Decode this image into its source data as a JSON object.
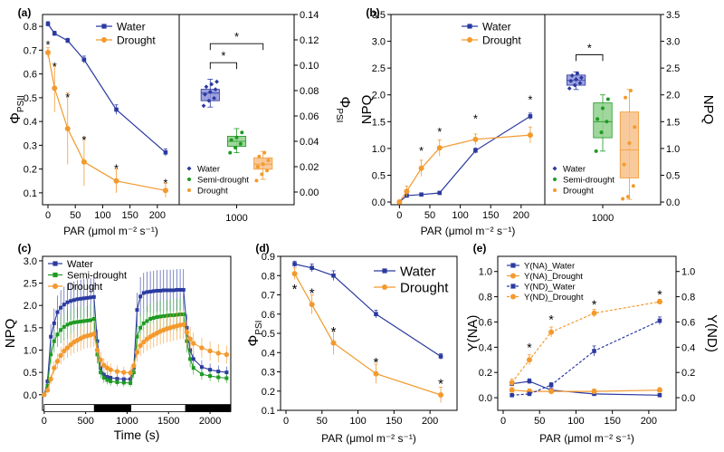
{
  "colors": {
    "water": "#2b3aa0",
    "drought": "#f39a2e",
    "semi": "#1e9a23",
    "box_water": "#8c90d8",
    "box_semi": "#8fd08c",
    "box_drought": "#f7c08a",
    "dark": "#000000"
  },
  "chart_data": [
    {
      "id": "a",
      "label": "(a)",
      "type": "line",
      "xlabel": "PAR (μmol m⁻² s⁻¹)",
      "ylabel": "ΦPSII",
      "xlim": [
        0,
        230
      ],
      "ylim": [
        0.05,
        0.85
      ],
      "xticks": [
        0,
        50,
        100,
        150,
        200
      ],
      "yticks": [
        0.1,
        0.2,
        0.3,
        0.4,
        0.5,
        0.6,
        0.7,
        0.8
      ],
      "series": [
        {
          "name": "Water",
          "color_key": "water",
          "marker": "square",
          "x": [
            0,
            12,
            36,
            66,
            125,
            215
          ],
          "y": [
            0.81,
            0.77,
            0.74,
            0.66,
            0.45,
            0.27
          ],
          "err": [
            0.01,
            0.01,
            0.01,
            0.015,
            0.02,
            0.015
          ]
        },
        {
          "name": "Drought",
          "color_key": "drought",
          "marker": "circle",
          "x": [
            0,
            12,
            36,
            66,
            125,
            215
          ],
          "y": [
            0.69,
            0.54,
            0.37,
            0.23,
            0.15,
            0.11
          ],
          "err": [
            0.02,
            0.1,
            0.15,
            0.1,
            0.05,
            0.03
          ]
        }
      ],
      "stars": [
        {
          "x": 0,
          "y": 0.72,
          "text": "*"
        },
        {
          "x": 12,
          "y": 0.63,
          "text": "*"
        },
        {
          "x": 36,
          "y": 0.5,
          "text": "*"
        },
        {
          "x": 66,
          "y": 0.32,
          "text": "*"
        },
        {
          "x": 125,
          "y": 0.2,
          "text": "*"
        },
        {
          "x": 215,
          "y": 0.14,
          "text": "*"
        }
      ],
      "legend": [
        "Water",
        "Drought"
      ],
      "box": {
        "ylabel": "ΦPSI",
        "ylim": [
          -0.01,
          0.14
        ],
        "yticks": [
          "0.00",
          "0.02",
          "0.04",
          "0.06",
          "0.08",
          "0.10",
          "0.12",
          "0.14"
        ],
        "xtick": "1000",
        "groups": [
          {
            "name": "Water",
            "color_key": "box_water",
            "mk_key": "water",
            "q1": 0.072,
            "median": 0.078,
            "q3": 0.081,
            "min": 0.067,
            "max": 0.089,
            "points": [
              0.068,
              0.072,
              0.074,
              0.077,
              0.079,
              0.081,
              0.083,
              0.085,
              0.087
            ]
          },
          {
            "name": "Semi-drought",
            "color_key": "box_semi",
            "mk_key": "semi",
            "q1": 0.036,
            "median": 0.04,
            "q3": 0.044,
            "min": 0.031,
            "max": 0.05,
            "points": [
              0.031,
              0.035,
              0.038,
              0.041,
              0.043,
              0.047
            ]
          },
          {
            "name": "Drought",
            "color_key": "box_drought",
            "mk_key": "drought",
            "q1": 0.018,
            "median": 0.022,
            "q3": 0.027,
            "min": 0.01,
            "max": 0.032,
            "points": [
              0.009,
              0.014,
              0.017,
              0.02,
              0.022,
              0.025,
              0.028,
              0.031
            ]
          }
        ],
        "legend": [
          "Water",
          "Semi-drought",
          "Drought"
        ],
        "sig": [
          {
            "from": 0,
            "to": 1,
            "y": 0.102,
            "text": "*"
          },
          {
            "from": 0,
            "to": 2,
            "y": 0.117,
            "text": "*"
          }
        ]
      }
    },
    {
      "id": "b",
      "label": "(b)",
      "type": "line",
      "xlabel": "PAR (μmol m⁻² s⁻¹)",
      "ylabel": "NPQ",
      "xlim": [
        -5,
        230
      ],
      "ylim": [
        -0.05,
        3.5
      ],
      "xticks": [
        0,
        50,
        100,
        150,
        200
      ],
      "yticks": [
        "0.0",
        "0.5",
        "1.0",
        "1.5",
        "2.0",
        "2.5",
        "3.0",
        "3.5"
      ],
      "series": [
        {
          "name": "Water",
          "color_key": "water",
          "marker": "square",
          "x": [
            0,
            12,
            36,
            66,
            125,
            215
          ],
          "y": [
            0.0,
            0.12,
            0.14,
            0.17,
            0.96,
            1.6
          ],
          "err": [
            0.01,
            0.02,
            0.02,
            0.03,
            0.05,
            0.06
          ]
        },
        {
          "name": "Drought",
          "color_key": "drought",
          "marker": "circle",
          "x": [
            0,
            12,
            36,
            66,
            125,
            215
          ],
          "y": [
            0.0,
            0.2,
            0.63,
            1.01,
            1.17,
            1.25
          ],
          "err": [
            0.01,
            0.1,
            0.15,
            0.15,
            0.1,
            0.15
          ]
        }
      ],
      "stars": [
        {
          "x": 36,
          "y": 0.95,
          "text": "*"
        },
        {
          "x": 66,
          "y": 1.3,
          "text": "*"
        },
        {
          "x": 125,
          "y": 1.55,
          "text": "*"
        },
        {
          "x": 215,
          "y": 1.9,
          "text": "*"
        }
      ],
      "legend": [
        "Water",
        "Drought"
      ],
      "box": {
        "ylabel": "NPQ",
        "ylim": [
          -0.05,
          3.5
        ],
        "yticks": [
          "0.0",
          "0.5",
          "1.0",
          "1.5",
          "2.0",
          "2.5",
          "3.0",
          "3.5"
        ],
        "xtick": "1000",
        "groups": [
          {
            "name": "Water",
            "color_key": "box_water",
            "mk_key": "water",
            "q1": 2.18,
            "median": 2.27,
            "q3": 2.37,
            "min": 2.1,
            "max": 2.43,
            "points": [
              2.12,
              2.18,
              2.22,
              2.26,
              2.29,
              2.32,
              2.36,
              2.4
            ]
          },
          {
            "name": "Semi-drought",
            "color_key": "box_semi",
            "mk_key": "semi",
            "q1": 1.2,
            "median": 1.5,
            "q3": 1.85,
            "min": 0.95,
            "max": 2.0,
            "points": [
              0.95,
              1.3,
              1.5,
              1.55,
              1.75,
              1.92
            ]
          },
          {
            "name": "Drought",
            "color_key": "box_drought",
            "mk_key": "drought",
            "q1": 0.45,
            "median": 0.97,
            "q3": 1.68,
            "min": 0.05,
            "max": 2.1,
            "points": [
              0.06,
              0.1,
              0.3,
              0.7,
              1.1,
              1.4,
              1.95,
              2.08
            ]
          }
        ],
        "legend": [
          "Water",
          "Semi-drought",
          "Drought"
        ],
        "sig": [
          {
            "from": 0,
            "to": 1,
            "y": 2.75,
            "text": "*"
          }
        ]
      }
    },
    {
      "id": "c",
      "label": "(c)",
      "type": "line",
      "xlabel": "Time (s)",
      "ylabel": "NPQ",
      "xlim": [
        -20,
        2250
      ],
      "ylim": [
        -0.35,
        3.1
      ],
      "xticks": [
        0,
        500,
        1000,
        1500,
        2000
      ],
      "yticks": [
        "0.0",
        "0.5",
        "1.0",
        "1.5",
        "2.0",
        "2.5",
        "3.0"
      ],
      "dark_periods": [
        [
          600,
          1050
        ],
        [
          1700,
          2250
        ]
      ],
      "series": [
        {
          "name": "Water",
          "color_key": "water",
          "marker": "square",
          "t": [
            0,
            40,
            80,
            120,
            160,
            200,
            240,
            280,
            320,
            360,
            400,
            440,
            480,
            520,
            560,
            600,
            640,
            680,
            720,
            760,
            800,
            880,
            960,
            1040,
            1080,
            1120,
            1160,
            1200,
            1240,
            1280,
            1320,
            1360,
            1400,
            1440,
            1480,
            1520,
            1560,
            1600,
            1640,
            1680,
            1720,
            1760,
            1800,
            1900,
            2000,
            2100,
            2200
          ],
          "y": [
            0.0,
            0.3,
            1.3,
            1.6,
            1.85,
            1.95,
            2.02,
            2.07,
            2.1,
            2.12,
            2.14,
            2.15,
            2.16,
            2.17,
            2.18,
            2.19,
            1.2,
            0.6,
            0.45,
            0.4,
            0.38,
            0.36,
            0.35,
            0.35,
            0.6,
            1.9,
            2.2,
            2.28,
            2.3,
            2.31,
            2.32,
            2.33,
            2.33,
            2.34,
            2.34,
            2.34,
            2.34,
            2.35,
            2.35,
            2.35,
            1.5,
            1.0,
            0.8,
            0.62,
            0.56,
            0.52,
            0.5
          ]
        },
        {
          "name": "Semi-drought",
          "color_key": "semi",
          "marker": "square",
          "t": [
            0,
            40,
            80,
            120,
            160,
            200,
            240,
            280,
            320,
            360,
            400,
            440,
            480,
            520,
            560,
            600,
            640,
            680,
            720,
            760,
            800,
            880,
            960,
            1040,
            1080,
            1120,
            1160,
            1200,
            1240,
            1280,
            1320,
            1360,
            1400,
            1440,
            1480,
            1520,
            1560,
            1600,
            1640,
            1680,
            1720,
            1760,
            1800,
            1900,
            2000,
            2100,
            2200
          ],
          "y": [
            0.0,
            0.2,
            0.9,
            1.2,
            1.35,
            1.45,
            1.52,
            1.57,
            1.6,
            1.62,
            1.63,
            1.64,
            1.65,
            1.66,
            1.67,
            1.7,
            0.9,
            0.5,
            0.38,
            0.33,
            0.3,
            0.28,
            0.27,
            0.26,
            0.5,
            1.3,
            1.5,
            1.6,
            1.65,
            1.7,
            1.72,
            1.74,
            1.75,
            1.76,
            1.77,
            1.78,
            1.78,
            1.79,
            1.8,
            1.8,
            1.2,
            0.8,
            0.6,
            0.46,
            0.42,
            0.39,
            0.37
          ]
        },
        {
          "name": "Drought",
          "color_key": "drought",
          "marker": "circle",
          "t": [
            0,
            40,
            80,
            120,
            160,
            200,
            240,
            280,
            320,
            360,
            400,
            440,
            480,
            520,
            560,
            600,
            640,
            680,
            720,
            760,
            800,
            880,
            960,
            1040,
            1080,
            1120,
            1160,
            1200,
            1240,
            1280,
            1320,
            1360,
            1400,
            1440,
            1480,
            1520,
            1560,
            1600,
            1640,
            1680,
            1720,
            1760,
            1800,
            1900,
            2000,
            2100,
            2200
          ],
          "y": [
            0.0,
            0.1,
            0.35,
            0.6,
            0.75,
            0.88,
            0.98,
            1.05,
            1.12,
            1.18,
            1.22,
            1.26,
            1.3,
            1.32,
            1.34,
            1.36,
            1.0,
            0.78,
            0.66,
            0.6,
            0.56,
            0.52,
            0.5,
            0.49,
            0.65,
            0.95,
            1.1,
            1.18,
            1.25,
            1.3,
            1.34,
            1.38,
            1.42,
            1.45,
            1.48,
            1.5,
            1.52,
            1.54,
            1.56,
            1.57,
            1.4,
            1.25,
            1.15,
            1.05,
            0.98,
            0.93,
            0.9
          ]
        }
      ],
      "legend": [
        "Water",
        "Semi-drought",
        "Drought"
      ]
    },
    {
      "id": "d",
      "label": "(d)",
      "type": "line",
      "xlabel": "PAR (μmol m⁻² s⁻¹)",
      "ylabel": "ΦPSI",
      "xlim": [
        0,
        230
      ],
      "ylim": [
        0.1,
        0.9
      ],
      "xticks": [
        0,
        50,
        100,
        150,
        200
      ],
      "yticks": [
        0.1,
        0.2,
        0.3,
        0.4,
        0.5,
        0.6,
        0.7,
        0.8,
        0.9
      ],
      "series": [
        {
          "name": "Water",
          "color_key": "water",
          "marker": "square",
          "x": [
            12,
            36,
            66,
            125,
            215
          ],
          "y": [
            0.86,
            0.84,
            0.8,
            0.6,
            0.38
          ],
          "err": [
            0.015,
            0.02,
            0.025,
            0.02,
            0.015
          ]
        },
        {
          "name": "Drought",
          "color_key": "drought",
          "marker": "circle",
          "x": [
            12,
            36,
            66,
            125,
            215
          ],
          "y": [
            0.81,
            0.65,
            0.45,
            0.29,
            0.18
          ],
          "err": [
            0.03,
            0.05,
            0.06,
            0.05,
            0.04
          ]
        }
      ],
      "stars": [
        {
          "x": 12,
          "y": 0.73,
          "text": "*"
        },
        {
          "x": 36,
          "y": 0.71,
          "text": "*"
        },
        {
          "x": 66,
          "y": 0.51,
          "text": "*"
        },
        {
          "x": 125,
          "y": 0.35,
          "text": "*"
        },
        {
          "x": 215,
          "y": 0.24,
          "text": "*"
        }
      ],
      "legend": [
        "Water",
        "Drought"
      ]
    },
    {
      "id": "e",
      "label": "(e)",
      "type": "line",
      "xlabel": "PAR (μmol m⁻² s⁻¹)",
      "ylabel": "Y(NA)",
      "ylabel_right": "Y(ND)",
      "xlim": [
        0,
        230
      ],
      "ylim": [
        -0.1,
        1.12
      ],
      "xticks": [
        0,
        50,
        100,
        150,
        200
      ],
      "yticks": [
        "0.0",
        "0.2",
        "0.4",
        "0.6",
        "0.8",
        "1.0"
      ],
      "series": [
        {
          "name": "Y(NA)_Water",
          "color_key": "water",
          "marker": "square",
          "dashed": false,
          "x": [
            12,
            36,
            66,
            125,
            215
          ],
          "y": [
            0.11,
            0.13,
            0.06,
            0.03,
            0.02
          ],
          "err": [
            0.02,
            0.02,
            0.03,
            0.01,
            0.01
          ]
        },
        {
          "name": "Y(NA)_Drought",
          "color_key": "drought",
          "marker": "circle",
          "dashed": false,
          "x": [
            12,
            36,
            66,
            125,
            215
          ],
          "y": [
            0.06,
            0.05,
            0.05,
            0.05,
            0.06
          ],
          "err": [
            0.02,
            0.02,
            0.02,
            0.02,
            0.02
          ]
        },
        {
          "name": "Y(ND)_Water",
          "color_key": "water",
          "marker": "square",
          "dashed": true,
          "x": [
            12,
            36,
            66,
            125,
            215
          ],
          "y": [
            0.02,
            0.03,
            0.1,
            0.37,
            0.61
          ],
          "err": [
            0.01,
            0.01,
            0.02,
            0.04,
            0.03
          ]
        },
        {
          "name": "Y(ND)_Drought",
          "color_key": "drought",
          "marker": "circle",
          "dashed": true,
          "x": [
            12,
            36,
            66,
            125,
            215
          ],
          "y": [
            0.12,
            0.3,
            0.52,
            0.67,
            0.76
          ],
          "err": [
            0.03,
            0.04,
            0.04,
            0.03,
            0.02
          ]
        }
      ],
      "stars": [
        {
          "x": 36,
          "y": 0.4,
          "text": "*"
        },
        {
          "x": 66,
          "y": 0.62,
          "text": "*"
        },
        {
          "x": 125,
          "y": 0.74,
          "text": "*"
        },
        {
          "x": 215,
          "y": 0.82,
          "text": "*"
        }
      ],
      "legend": [
        "Y(NA)_Water",
        "Y(NA)_Drought",
        "Y(ND)_Water",
        "Y(ND)_Drought"
      ]
    }
  ]
}
